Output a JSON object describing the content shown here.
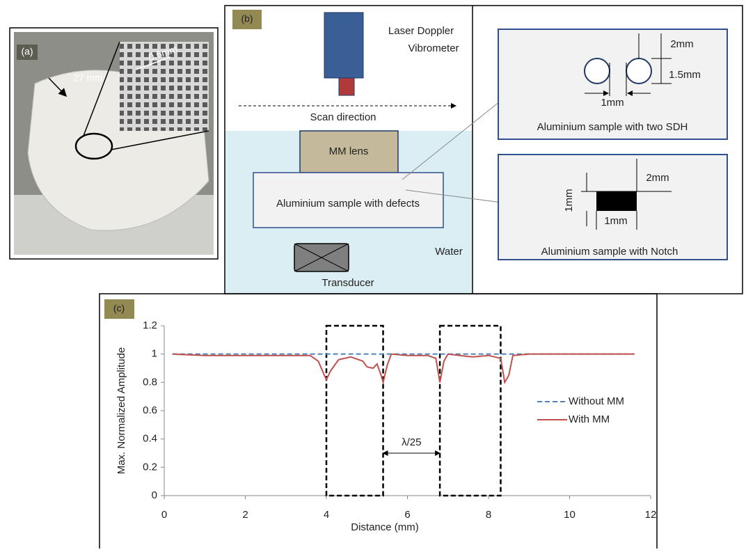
{
  "panel_a": {
    "label": "(a)",
    "dimension_outer": "27 mm",
    "dimension_cell": "0.6mm"
  },
  "panel_b": {
    "label": "(b)",
    "vibrometer": [
      "Laser Doppler",
      "Vibrometer"
    ],
    "scan": "Scan direction",
    "lens": "MM lens",
    "sample": "Aluminium sample with defects",
    "transducer": "Transducer",
    "medium": "Water",
    "sdh": {
      "caption": "Aluminium sample with two SDH",
      "depth": "2mm",
      "diameter": "1.5mm",
      "spacing": "1mm"
    },
    "notch": {
      "caption": "Aluminium sample with Notch",
      "depth": "2mm",
      "height": "1mm",
      "width": "1mm"
    }
  },
  "chart_data": {
    "type": "line",
    "panel_label": "(c)",
    "xlabel": "Distance (mm)",
    "ylabel": "Max. Normalized Amplitude",
    "xlim": [
      0,
      12
    ],
    "xticks": [
      0,
      2,
      4,
      6,
      8,
      10,
      12
    ],
    "ylim": [
      0,
      1.2
    ],
    "yticks": [
      0,
      0.2,
      0.4,
      0.6,
      0.8,
      1,
      1.2
    ],
    "legend": "right",
    "series": [
      {
        "name": "Without MM",
        "color": "#4f81bd",
        "linestyle": "dashed",
        "x": [
          0.2,
          11.6
        ],
        "values": [
          1,
          1
        ]
      },
      {
        "name": "With MM",
        "color": "#c0504d",
        "linestyle": "solid",
        "x": [
          0.2,
          1,
          2,
          3,
          3.6,
          3.8,
          3.95,
          4.0,
          4.1,
          4.3,
          4.6,
          4.9,
          5.0,
          5.15,
          5.25,
          5.35,
          5.4,
          5.5,
          5.6,
          6.0,
          6.5,
          6.7,
          6.8,
          6.9,
          7.0,
          7.3,
          7.6,
          8.0,
          8.3,
          8.4,
          8.5,
          8.6,
          9,
          10,
          11,
          11.6
        ],
        "values": [
          1.0,
          0.99,
          0.99,
          0.99,
          0.99,
          0.95,
          0.85,
          0.82,
          0.88,
          0.96,
          0.98,
          0.95,
          0.91,
          0.9,
          0.93,
          0.85,
          0.8,
          0.92,
          1.0,
          0.99,
          0.99,
          0.97,
          0.8,
          0.95,
          1.0,
          0.99,
          0.98,
          0.99,
          0.97,
          0.8,
          0.85,
          0.99,
          1.0,
          1.0,
          1.0,
          1.0
        ]
      }
    ],
    "regions": [
      [
        4.0,
        5.4
      ],
      [
        6.8,
        8.3
      ]
    ],
    "annotation": {
      "text": "λ/25",
      "x": [
        5.4,
        6.8
      ],
      "y": 0.3
    }
  }
}
